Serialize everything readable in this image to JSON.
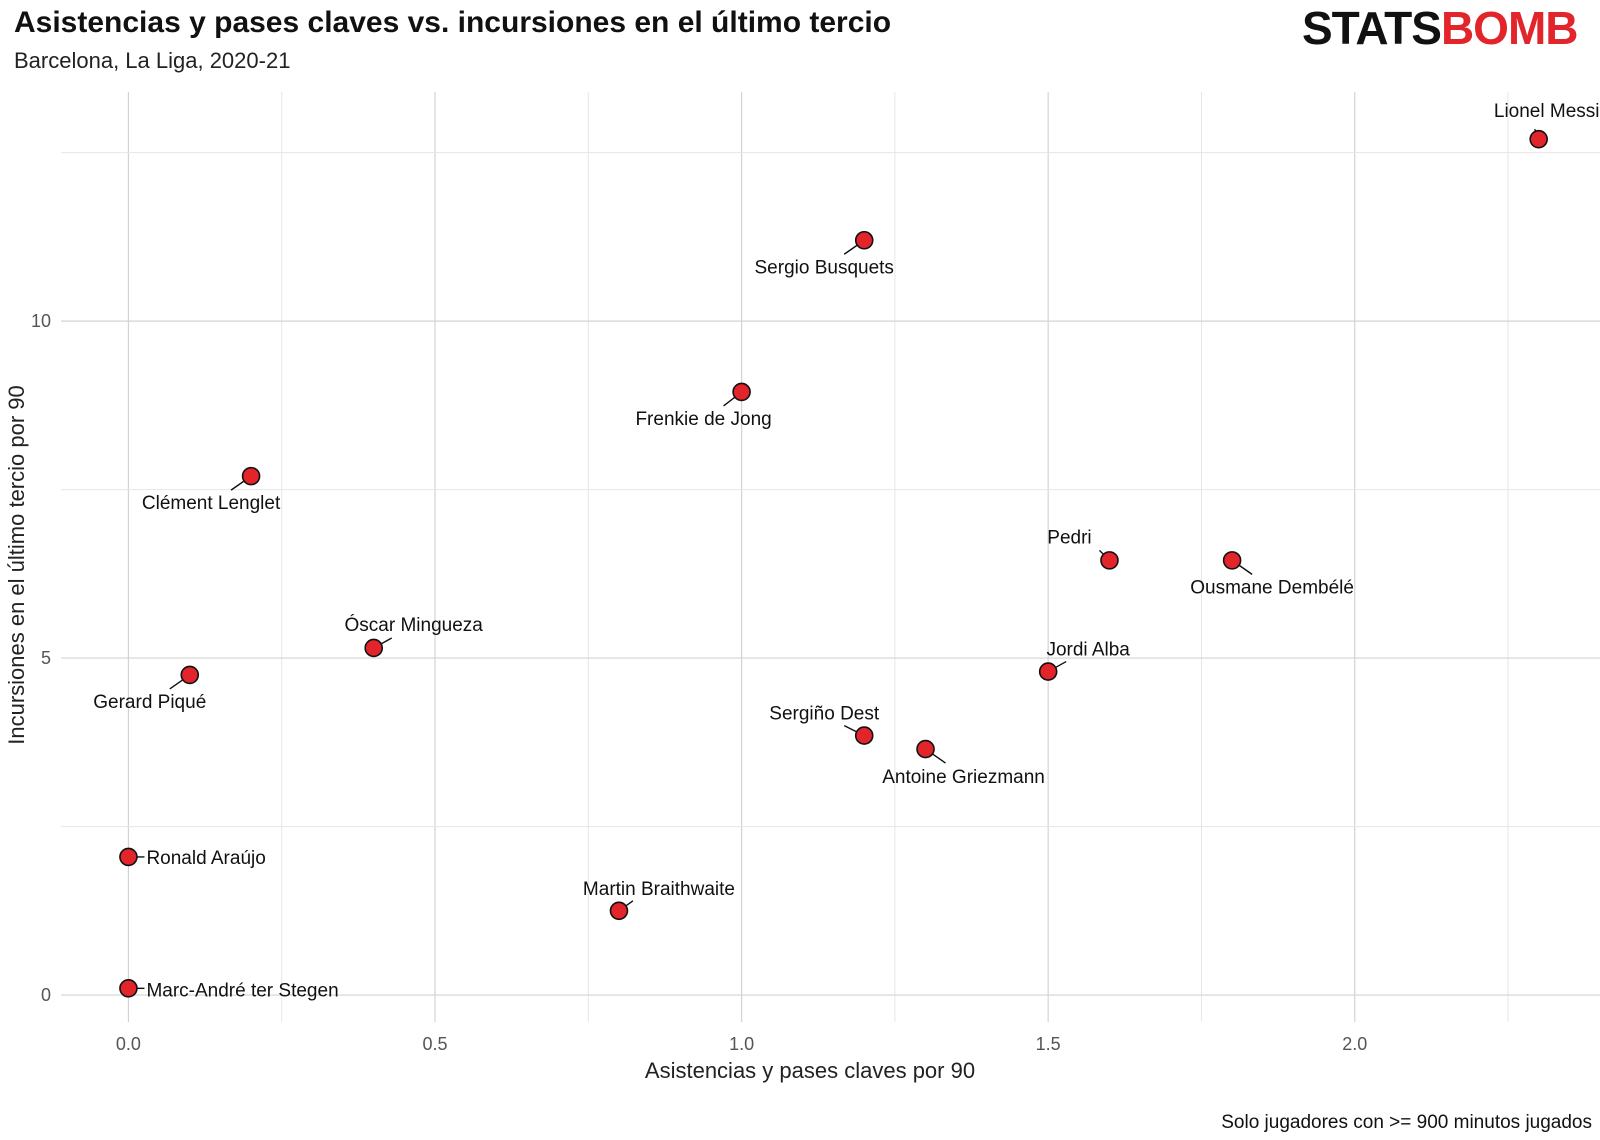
{
  "header": {
    "title": "Asistencias y pases claves vs. incursiones en el último tercio",
    "subtitle": "Barcelona, La Liga, 2020-21",
    "logo_stats": "STATS",
    "logo_bomb": "BOMB",
    "caption": "Solo jugadores con >= 900 minutos jugados"
  },
  "colors": {
    "point": "#e2242b",
    "logo_accent": "#e2242b"
  },
  "chart_data": {
    "type": "scatter",
    "title": "Asistencias y pases claves vs. incursiones en el último tercio",
    "subtitle": "Barcelona, La Liga, 2020-21",
    "xlabel": "Asistencias y pases claves por 90",
    "ylabel": "Incursiones en el último tercio por 90",
    "xlim": [
      -0.11,
      2.4
    ],
    "ylim": [
      -0.4,
      13.4
    ],
    "xticks": [
      0.0,
      0.5,
      1.0,
      1.5,
      2.0
    ],
    "xtick_labels": [
      "0.0",
      "0.5",
      "1.0",
      "1.5",
      "2.0"
    ],
    "yticks": [
      0,
      5,
      10
    ],
    "ytick_labels": [
      "0",
      "5",
      "10"
    ],
    "grid": true,
    "legend": "none",
    "points": [
      {
        "label": "Lionel Messi",
        "x": 2.3,
        "y": 12.7
      },
      {
        "label": "Sergio Busquets",
        "x": 1.2,
        "y": 11.2
      },
      {
        "label": "Frenkie de Jong",
        "x": 1.0,
        "y": 8.95
      },
      {
        "label": "Clément Lenglet",
        "x": 0.2,
        "y": 7.7
      },
      {
        "label": "Pedri",
        "x": 1.6,
        "y": 6.45
      },
      {
        "label": "Ousmane Dembélé",
        "x": 1.8,
        "y": 6.45
      },
      {
        "label": "Óscar Mingueza",
        "x": 0.4,
        "y": 5.15
      },
      {
        "label": "Gerard Piqué",
        "x": 0.1,
        "y": 4.75
      },
      {
        "label": "Jordi Alba",
        "x": 1.5,
        "y": 4.8
      },
      {
        "label": "Sergiño Dest",
        "x": 1.2,
        "y": 3.85
      },
      {
        "label": "Antoine Griezmann",
        "x": 1.3,
        "y": 3.65
      },
      {
        "label": "Ronald Araújo",
        "x": 0.0,
        "y": 2.05
      },
      {
        "label": "Martin Braithwaite",
        "x": 0.8,
        "y": 1.25
      },
      {
        "label": "Marc-André ter Stegen",
        "x": 0.0,
        "y": 0.1
      }
    ]
  }
}
